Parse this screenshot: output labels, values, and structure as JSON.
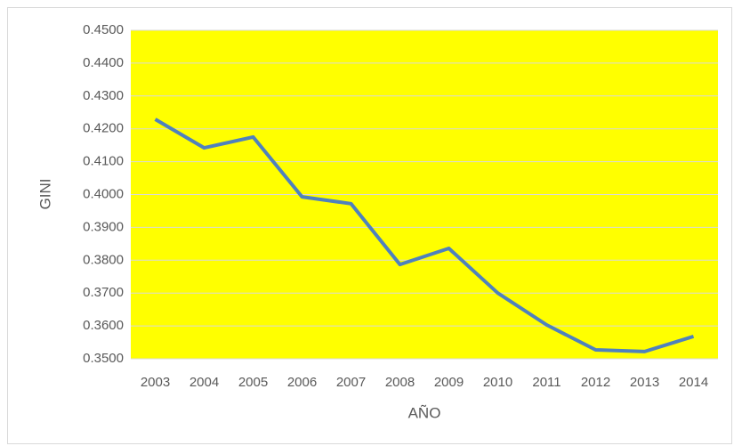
{
  "chart_data": {
    "type": "line",
    "x_label": "AÑO",
    "y_label": "GINI",
    "categories": [
      "2003",
      "2004",
      "2005",
      "2006",
      "2007",
      "2008",
      "2009",
      "2010",
      "2011",
      "2012",
      "2013",
      "2014"
    ],
    "values": [
      0.4229,
      0.4142,
      0.4175,
      0.3993,
      0.3972,
      0.3787,
      0.3836,
      0.37,
      0.3603,
      0.3527,
      0.3522,
      0.3568
    ],
    "color": "#4f81bd",
    "plot_background": "#ffff00",
    "ylim": [
      0.35,
      0.45
    ],
    "yticks": [
      {
        "value": 0.35,
        "label": "0.3500"
      },
      {
        "value": 0.36,
        "label": "0.3600"
      },
      {
        "value": 0.37,
        "label": "0.3700"
      },
      {
        "value": 0.38,
        "label": "0.3800"
      },
      {
        "value": 0.39,
        "label": "0.3900"
      },
      {
        "value": 0.4,
        "label": "0.4000"
      },
      {
        "value": 0.41,
        "label": "0.4100"
      },
      {
        "value": 0.42,
        "label": "0.4200"
      },
      {
        "value": 0.43,
        "label": "0.4300"
      },
      {
        "value": 0.44,
        "label": "0.4400"
      },
      {
        "value": 0.45,
        "label": "0.4500"
      }
    ],
    "grid": true
  }
}
